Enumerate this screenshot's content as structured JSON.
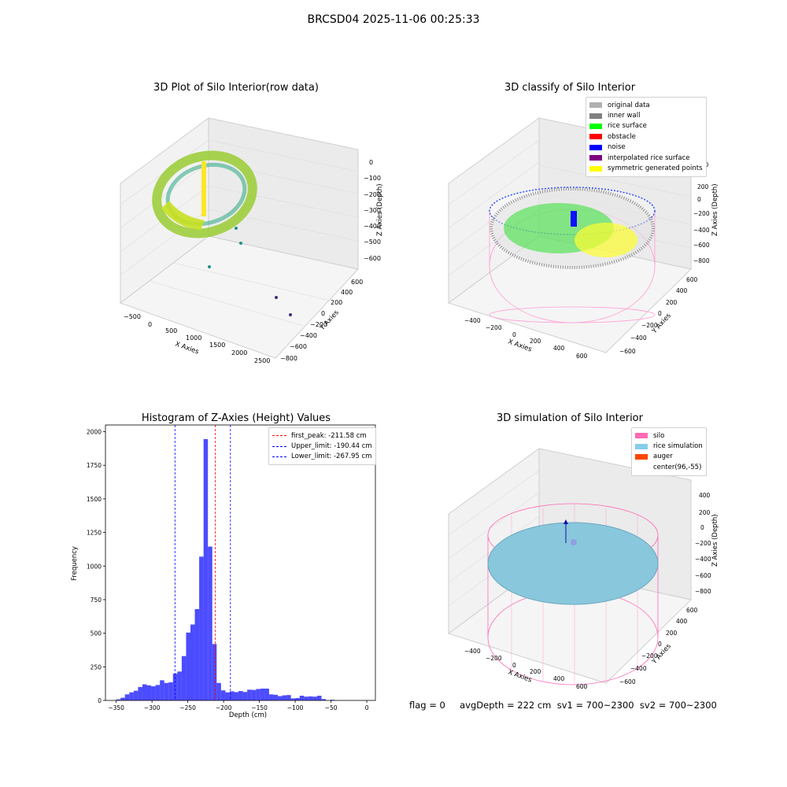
{
  "suptitle": "BRCSD04 2025-11-06 00:25:33",
  "panels": {
    "p1": {
      "title": "3D Plot of Silo Interior(row data)",
      "xlabel": "X Axies",
      "ylabel": "Y Axies",
      "zlabel": "Z Axies (Depth)",
      "xticks": [
        "−500",
        "0",
        "500",
        "1000",
        "1500",
        "2000",
        "2500"
      ],
      "yticks": [
        "−800",
        "−600",
        "−400",
        "−200",
        "0",
        "200",
        "400",
        "600"
      ],
      "zticks": [
        "0",
        "−100",
        "−200",
        "−300",
        "−400",
        "−500",
        "−600"
      ]
    },
    "p2": {
      "title": "3D classify of Silo Interior",
      "xlabel": "X Axies",
      "ylabel": "Y Axies",
      "zlabel": "Z Axies (Depth)",
      "xticks": [
        "−400",
        "−200",
        "0",
        "200",
        "400",
        "600"
      ],
      "yticks": [
        "−600",
        "−400",
        "−200",
        "0",
        "200",
        "400",
        "600"
      ],
      "zticks": [
        "400",
        "200",
        "0",
        "−200",
        "−400",
        "−600",
        "−800"
      ],
      "legend": [
        {
          "label": "original data",
          "color": "#b0b0b0"
        },
        {
          "label": "inner wall",
          "color": "#808080"
        },
        {
          "label": "rice surface",
          "color": "#00ff00"
        },
        {
          "label": "obstacle",
          "color": "#ff0000"
        },
        {
          "label": "noise",
          "color": "#0000ff"
        },
        {
          "label": "interpolated rice surface",
          "color": "#800080"
        },
        {
          "label": "symmetric generated points",
          "color": "#ffff00"
        }
      ]
    },
    "p3": {
      "title": "Histogram of Z-Axies (Height) Values",
      "xlabel": "Depth (cm)",
      "ylabel": "Frequency",
      "legend": [
        {
          "label": "first_peak: -211.58 cm",
          "color": "#ff0000"
        },
        {
          "label": "Upper_limit: -190.44 cm",
          "color": "#0000ff"
        },
        {
          "label": "Lower_limit: -267.95 cm",
          "color": "#0000ff"
        }
      ]
    },
    "p4": {
      "title": "3D simulation of Silo Interior",
      "xlabel": "X Axies",
      "ylabel": "Y Axies",
      "zlabel": "Z Axies (Depth)",
      "xticks": [
        "−400",
        "−200",
        "0",
        "200",
        "400",
        "600"
      ],
      "yticks": [
        "−600",
        "−400",
        "−200",
        "0",
        "200",
        "400",
        "600"
      ],
      "zticks": [
        "400",
        "200",
        "0",
        "−200",
        "−400",
        "−600",
        "−800"
      ],
      "legend": [
        {
          "label": "silo",
          "color": "#ff69b4"
        },
        {
          "label": "rice simulation",
          "color": "#87ceeb"
        },
        {
          "label": "auger",
          "color": "#ff4500"
        },
        {
          "label": "center(96,-55)",
          "color": "#ffffff"
        }
      ]
    }
  },
  "footer": {
    "text": "flag = 0     avgDepth = 222 cm  sv1 = 700~2300  sv2 = 700~2300"
  },
  "chart_data": [
    {
      "type": "histogram",
      "title": "Histogram of Z-Axies (Height) Values",
      "xlabel": "Depth (cm)",
      "ylabel": "Frequency",
      "xlim": [
        -365,
        12
      ],
      "ylim": [
        0,
        2050
      ],
      "xticks": [
        -350,
        -300,
        -250,
        -200,
        -150,
        -100,
        -50,
        0
      ],
      "yticks": [
        0,
        250,
        500,
        750,
        1000,
        1250,
        1500,
        1750,
        2000
      ],
      "bin_start": -350,
      "bin_width": 6.1,
      "counts": [
        8,
        20,
        45,
        60,
        72,
        100,
        120,
        112,
        105,
        115,
        150,
        130,
        135,
        200,
        215,
        330,
        505,
        565,
        680,
        1070,
        1945,
        1145,
        420,
        130,
        75,
        60,
        68,
        62,
        70,
        63,
        80,
        78,
        85,
        88,
        88,
        45,
        42,
        32,
        38,
        40,
        15,
        18,
        35,
        28,
        30,
        28,
        35,
        10,
        0,
        5
      ],
      "bar_color": "#0000ff",
      "vlines": [
        {
          "label": "first_peak: -211.58 cm",
          "x": -211.58,
          "color": "#ff0000"
        },
        {
          "label": "Upper_limit: -190.44 cm",
          "x": -190.44,
          "color": "#0000ff"
        },
        {
          "label": "Lower_limit: -267.95 cm",
          "x": -267.95,
          "color": "#0000ff"
        }
      ],
      "legend_position": "top-right"
    },
    {
      "type": "scatter",
      "title": "3D Plot of Silo Interior(row data)",
      "xlim": [
        -600,
        2600
      ],
      "ylim": [
        -800,
        600
      ],
      "zlim": [
        -650,
        50
      ]
    },
    {
      "type": "scatter",
      "title": "3D classify of Silo Interior",
      "xlim": [
        -500,
        700
      ],
      "ylim": [
        -700,
        700
      ],
      "zlim": [
        -900,
        400
      ],
      "legend_position": "top-right"
    },
    {
      "type": "surface",
      "title": "3D simulation of Silo Interior",
      "xlim": [
        -500,
        700
      ],
      "ylim": [
        -700,
        700
      ],
      "zlim": [
        -900,
        400
      ],
      "legend_position": "top-right"
    }
  ]
}
